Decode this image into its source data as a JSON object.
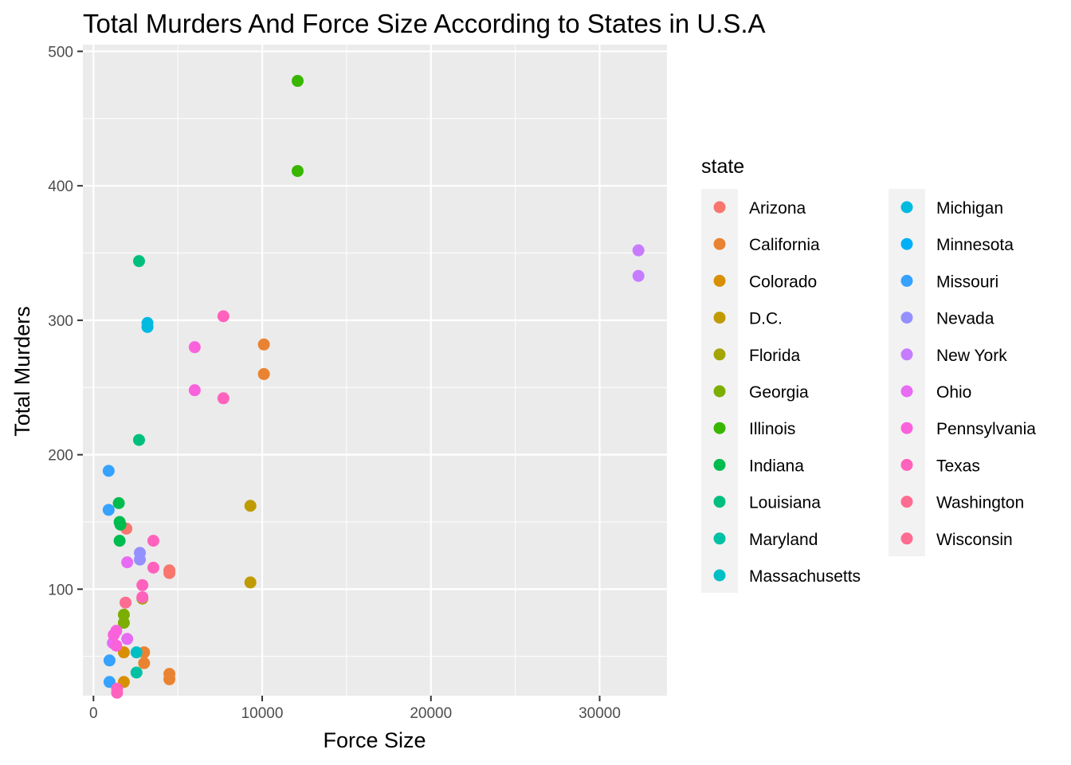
{
  "chart_data": {
    "type": "scatter",
    "title": "Total Murders And Force Size According to States in U.S.A",
    "xlabel": "Force Size",
    "ylabel": "Total Murders",
    "xlim": [
      -600,
      34000
    ],
    "ylim": [
      0,
      500
    ],
    "xticks": [
      0,
      10000,
      20000,
      30000
    ],
    "xtick_labels": [
      "0",
      "10000",
      "20000",
      "30000"
    ],
    "yticks": [
      100,
      200,
      300,
      400,
      500
    ],
    "ytick_labels": [
      "100",
      "200",
      "300",
      "400",
      "500"
    ],
    "grid": true,
    "legend_title": "state",
    "legend_position": "right",
    "series": [
      {
        "name": "Arizona",
        "color": "#F8766D",
        "points": [
          [
            4500,
            114
          ],
          [
            4500,
            112
          ],
          [
            1950,
            145
          ]
        ]
      },
      {
        "name": "California",
        "color": "#EA8331",
        "points": [
          [
            10100,
            282
          ],
          [
            10100,
            260
          ],
          [
            4500,
            37
          ],
          [
            4500,
            33
          ],
          [
            3000,
            53
          ],
          [
            3000,
            45
          ]
        ]
      },
      {
        "name": "Colorado",
        "color": "#D89000",
        "points": [
          [
            1800,
            53
          ],
          [
            1800,
            31
          ]
        ]
      },
      {
        "name": "D.C.",
        "color": "#C09B00",
        "points": [
          [
            9300,
            162
          ],
          [
            9300,
            105
          ]
        ]
      },
      {
        "name": "Florida",
        "color": "#A3A500",
        "points": [
          [
            2900,
            93
          ]
        ]
      },
      {
        "name": "Georgia",
        "color": "#7CAE00",
        "points": [
          [
            1800,
            81
          ],
          [
            1800,
            75
          ]
        ]
      },
      {
        "name": "Illinois",
        "color": "#39B600",
        "points": [
          [
            12100,
            478
          ],
          [
            12100,
            411
          ]
        ]
      },
      {
        "name": "Indiana",
        "color": "#00BB4E",
        "points": [
          [
            1500,
            164
          ],
          [
            1550,
            150
          ],
          [
            1600,
            148
          ],
          [
            1550,
            136
          ]
        ]
      },
      {
        "name": "Louisiana",
        "color": "#00BF7D",
        "points": [
          [
            2700,
            344
          ],
          [
            2700,
            211
          ]
        ]
      },
      {
        "name": "Maryland",
        "color": "#00C1A3",
        "points": [
          [
            2550,
            38
          ]
        ]
      },
      {
        "name": "Massachusetts",
        "color": "#00BFC4",
        "points": [
          [
            2550,
            53
          ]
        ]
      },
      {
        "name": "Michigan",
        "color": "#00BAE0",
        "points": [
          [
            3200,
            298
          ],
          [
            3200,
            295
          ]
        ]
      },
      {
        "name": "Minnesota",
        "color": "#00B0F6",
        "points": []
      },
      {
        "name": "Missouri",
        "color": "#35A2FF",
        "points": [
          [
            900,
            188
          ],
          [
            900,
            159
          ],
          [
            950,
            47
          ],
          [
            950,
            31
          ]
        ]
      },
      {
        "name": "Nevada",
        "color": "#9590FF",
        "points": [
          [
            2750,
            127
          ],
          [
            2750,
            122
          ]
        ]
      },
      {
        "name": "New York",
        "color": "#C77CFF",
        "points": [
          [
            32300,
            352
          ],
          [
            32300,
            333
          ]
        ]
      },
      {
        "name": "Ohio",
        "color": "#E76BF3",
        "points": [
          [
            2000,
            120
          ],
          [
            2000,
            63
          ],
          [
            1150,
            60
          ]
        ]
      },
      {
        "name": "Pennsylvania",
        "color": "#FA62DB",
        "points": [
          [
            6000,
            280
          ],
          [
            6000,
            248
          ],
          [
            1200,
            66
          ],
          [
            1350,
            69
          ],
          [
            1350,
            58
          ]
        ]
      },
      {
        "name": "Texas",
        "color": "#FF62BC",
        "points": [
          [
            7700,
            303
          ],
          [
            7700,
            242
          ],
          [
            3550,
            136
          ],
          [
            3550,
            116
          ],
          [
            2900,
            103
          ],
          [
            2900,
            94
          ],
          [
            1400,
            26
          ],
          [
            1400,
            23
          ]
        ]
      },
      {
        "name": "Washington",
        "color": "#FF6C91",
        "points": [
          [
            1900,
            90
          ]
        ]
      },
      {
        "name": "Wisconsin",
        "color": "#FF6C91",
        "points": []
      }
    ]
  }
}
